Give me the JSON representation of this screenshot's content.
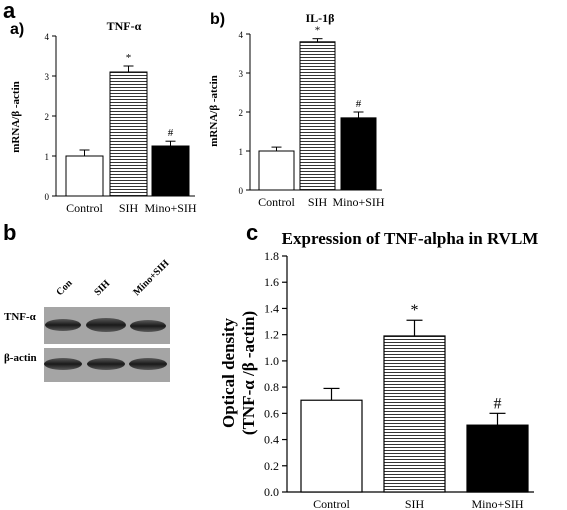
{
  "panel_labels": {
    "a": "a",
    "b": "b",
    "c": "c",
    "a_sub": "a)",
    "b_sub": "b)"
  },
  "chart_data": [
    {
      "id": "a",
      "type": "bar",
      "title": "TNF-α",
      "ylabel": "mRNA/β -actin",
      "categories": [
        "Control",
        "SIH",
        "Mino+SIH"
      ],
      "values": [
        1.0,
        3.1,
        1.25
      ],
      "errors": [
        0.15,
        0.15,
        0.12
      ],
      "significance": [
        "",
        "*",
        "#"
      ],
      "fills": [
        "white",
        "hlines",
        "black"
      ],
      "ylim": [
        0,
        4
      ],
      "yticks": [
        0,
        1,
        2,
        3,
        4
      ]
    },
    {
      "id": "b",
      "type": "bar",
      "title": "IL-1β",
      "ylabel": "mRNA/β -atcin",
      "categories": [
        "Control",
        "SIH",
        "Mino+SIH"
      ],
      "values": [
        1.0,
        3.8,
        1.85
      ],
      "errors": [
        0.1,
        0.08,
        0.15
      ],
      "significance": [
        "",
        "*",
        "#"
      ],
      "fills": [
        "white",
        "hlines",
        "black"
      ],
      "ylim": [
        0,
        4
      ],
      "yticks": [
        0,
        1,
        2,
        3,
        4
      ]
    },
    {
      "id": "c",
      "type": "bar",
      "title": "Expression of TNF-alpha in RVLM",
      "ylabel": "Optical density",
      "ylabel2": "(TNF-α /β -actin)",
      "categories": [
        "Control",
        "SIH",
        "Mino+SIH"
      ],
      "values": [
        0.7,
        1.19,
        0.51
      ],
      "errors": [
        0.09,
        0.12,
        0.09
      ],
      "significance": [
        "",
        "*",
        "#"
      ],
      "fills": [
        "white",
        "hlines",
        "black"
      ],
      "ylim": [
        0,
        1.8
      ],
      "yticks": [
        "0.0",
        "0.2",
        "0.4",
        "0.6",
        "0.8",
        "1.0",
        "1.2",
        "1.4",
        "1.6",
        "1.8"
      ]
    }
  ],
  "blot": {
    "lanes": [
      "Con",
      "SIH",
      "Mino+SIH"
    ],
    "rows": [
      {
        "label": "TNF-α"
      },
      {
        "label": "β-actin"
      }
    ]
  },
  "colors": {
    "bar_outline": "#000000",
    "black_fill": "#000000",
    "blot_bg": "#9a9a9a"
  }
}
